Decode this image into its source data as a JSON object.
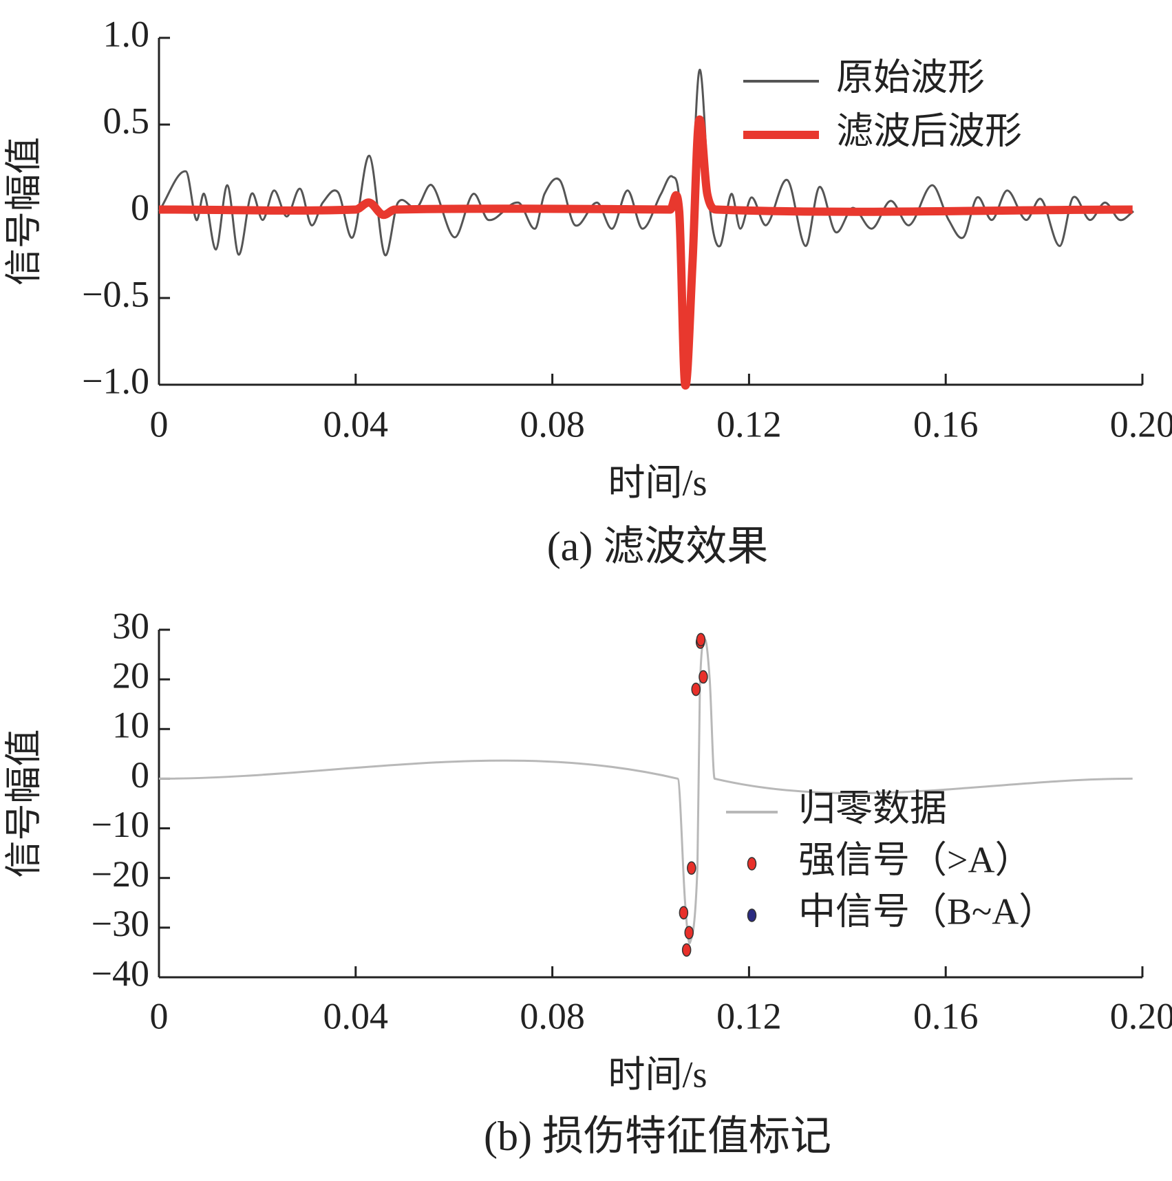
{
  "chart_data": [
    {
      "type": "line",
      "caption": "(a) 滤波效果",
      "xlabel": "时间/s",
      "ylabel": "信号幅值",
      "xlim": [
        0,
        0.2
      ],
      "ylim": [
        -1,
        1
      ],
      "xticks": [
        0,
        0.04,
        0.08,
        0.12,
        0.16,
        {
          "value": 0.2,
          "label": "0.20"
        }
      ],
      "yticks": [
        {
          "value": 1,
          "label": "1.0"
        },
        0.5,
        0,
        {
          "value": -0.5,
          "label": "−0.5"
        },
        {
          "value": -1,
          "label": "−1.0"
        }
      ],
      "legend": "upper right",
      "series": [
        {
          "name": "原始波形",
          "color": "#555555",
          "x": [
            0,
            0.0055,
            0.0076,
            0.0092,
            0.0116,
            0.0139,
            0.0162,
            0.0188,
            0.0211,
            0.0234,
            0.026,
            0.0287,
            0.031,
            0.0333,
            0.0364,
            0.0394,
            0.0428,
            0.0459,
            0.0486,
            0.0524,
            0.0555,
            0.0601,
            0.0639,
            0.067,
            0.0731,
            0.0765,
            0.0784,
            0.0815,
            0.0846,
            0.0891,
            0.0922,
            0.0953,
            0.0983,
            0.1021,
            0.1044,
            0.106,
            0.107,
            0.1098,
            0.1121,
            0.1141,
            0.1164,
            0.1182,
            0.1205,
            0.1235,
            0.1278,
            0.1315,
            0.1343,
            0.1376,
            0.1411,
            0.145,
            0.1488,
            0.1526,
            0.1572,
            0.1606,
            0.1636,
            0.1664,
            0.1694,
            0.1725,
            0.1763,
            0.1794,
            0.1832,
            0.1859,
            0.1893,
            0.1924,
            0.1954,
            0.1982
          ],
          "values": [
            0,
            0.23,
            -0.05,
            0.1,
            -0.22,
            0.15,
            -0.25,
            0.1,
            -0.05,
            0.12,
            -0.03,
            0.13,
            -0.08,
            0.05,
            0.11,
            -0.15,
            0.32,
            -0.25,
            0.05,
            0.02,
            0.15,
            -0.15,
            0.1,
            -0.05,
            0.05,
            -0.1,
            0.1,
            0.18,
            -0.08,
            0.05,
            -0.1,
            0.12,
            -0.1,
            0.1,
            0.2,
            0,
            -0.9,
            0.8,
            0,
            -0.2,
            0.1,
            -0.1,
            0.08,
            -0.08,
            0.18,
            -0.2,
            0.14,
            -0.12,
            0.02,
            -0.1,
            0.06,
            -0.08,
            0.15,
            -0.05,
            -0.15,
            0.08,
            -0.05,
            0.12,
            -0.05,
            0.07,
            -0.2,
            0.08,
            -0.05,
            0.05,
            -0.05,
            0
          ]
        },
        {
          "name": "滤波后波形",
          "color": "#e8382e",
          "x": [
            0,
            0.04,
            0.0428,
            0.0455,
            0.048,
            0.104,
            0.1058,
            0.107,
            0.1085,
            0.1098,
            0.1115,
            0.1135,
            0.198
          ],
          "values": [
            0.01,
            0.01,
            0.05,
            -0.02,
            0.01,
            0.01,
            0,
            -1,
            -0.3,
            0.52,
            0.1,
            0.01,
            0.01
          ]
        }
      ]
    },
    {
      "type": "line",
      "caption": "(b) 损伤特征值标记",
      "xlabel": "时间/s",
      "ylabel": "信号幅值",
      "xlim": [
        0,
        0.2
      ],
      "ylim": [
        -40,
        30
      ],
      "xticks": [
        0,
        0.04,
        0.08,
        0.12,
        0.16,
        {
          "value": 0.2,
          "label": "0.20"
        }
      ],
      "yticks": [
        30,
        20,
        10,
        0,
        {
          "value": -10,
          "label": "−10"
        },
        {
          "value": -20,
          "label": "−20"
        },
        {
          "value": -30,
          "label": "−30"
        },
        {
          "value": -40,
          "label": "−40"
        }
      ],
      "legend": "lower right",
      "series": [
        {
          "name": "归零数据",
          "color": "#b8b8b8",
          "mode": "line",
          "x": [
            0,
            0.1055,
            0.107,
            0.108,
            0.1095,
            0.11,
            0.111,
            0.112,
            0.113,
            0.198
          ],
          "values": [
            0,
            0,
            -25,
            -33,
            -18,
            18,
            28,
            20,
            0,
            0
          ]
        },
        {
          "name": "强信号（>A）",
          "color": "#e8302a",
          "mode": "markers",
          "x": [
            0.1067,
            0.1073,
            0.1078,
            0.1083,
            0.1092,
            0.1101,
            0.1102,
            0.1107
          ],
          "values": [
            -27,
            -34.5,
            -31,
            -18,
            18,
            27.5,
            28,
            20.5
          ]
        },
        {
          "name": "中信号（B~A）",
          "color": "#2a2a80",
          "mode": "markers",
          "x": [],
          "values": []
        }
      ]
    }
  ]
}
